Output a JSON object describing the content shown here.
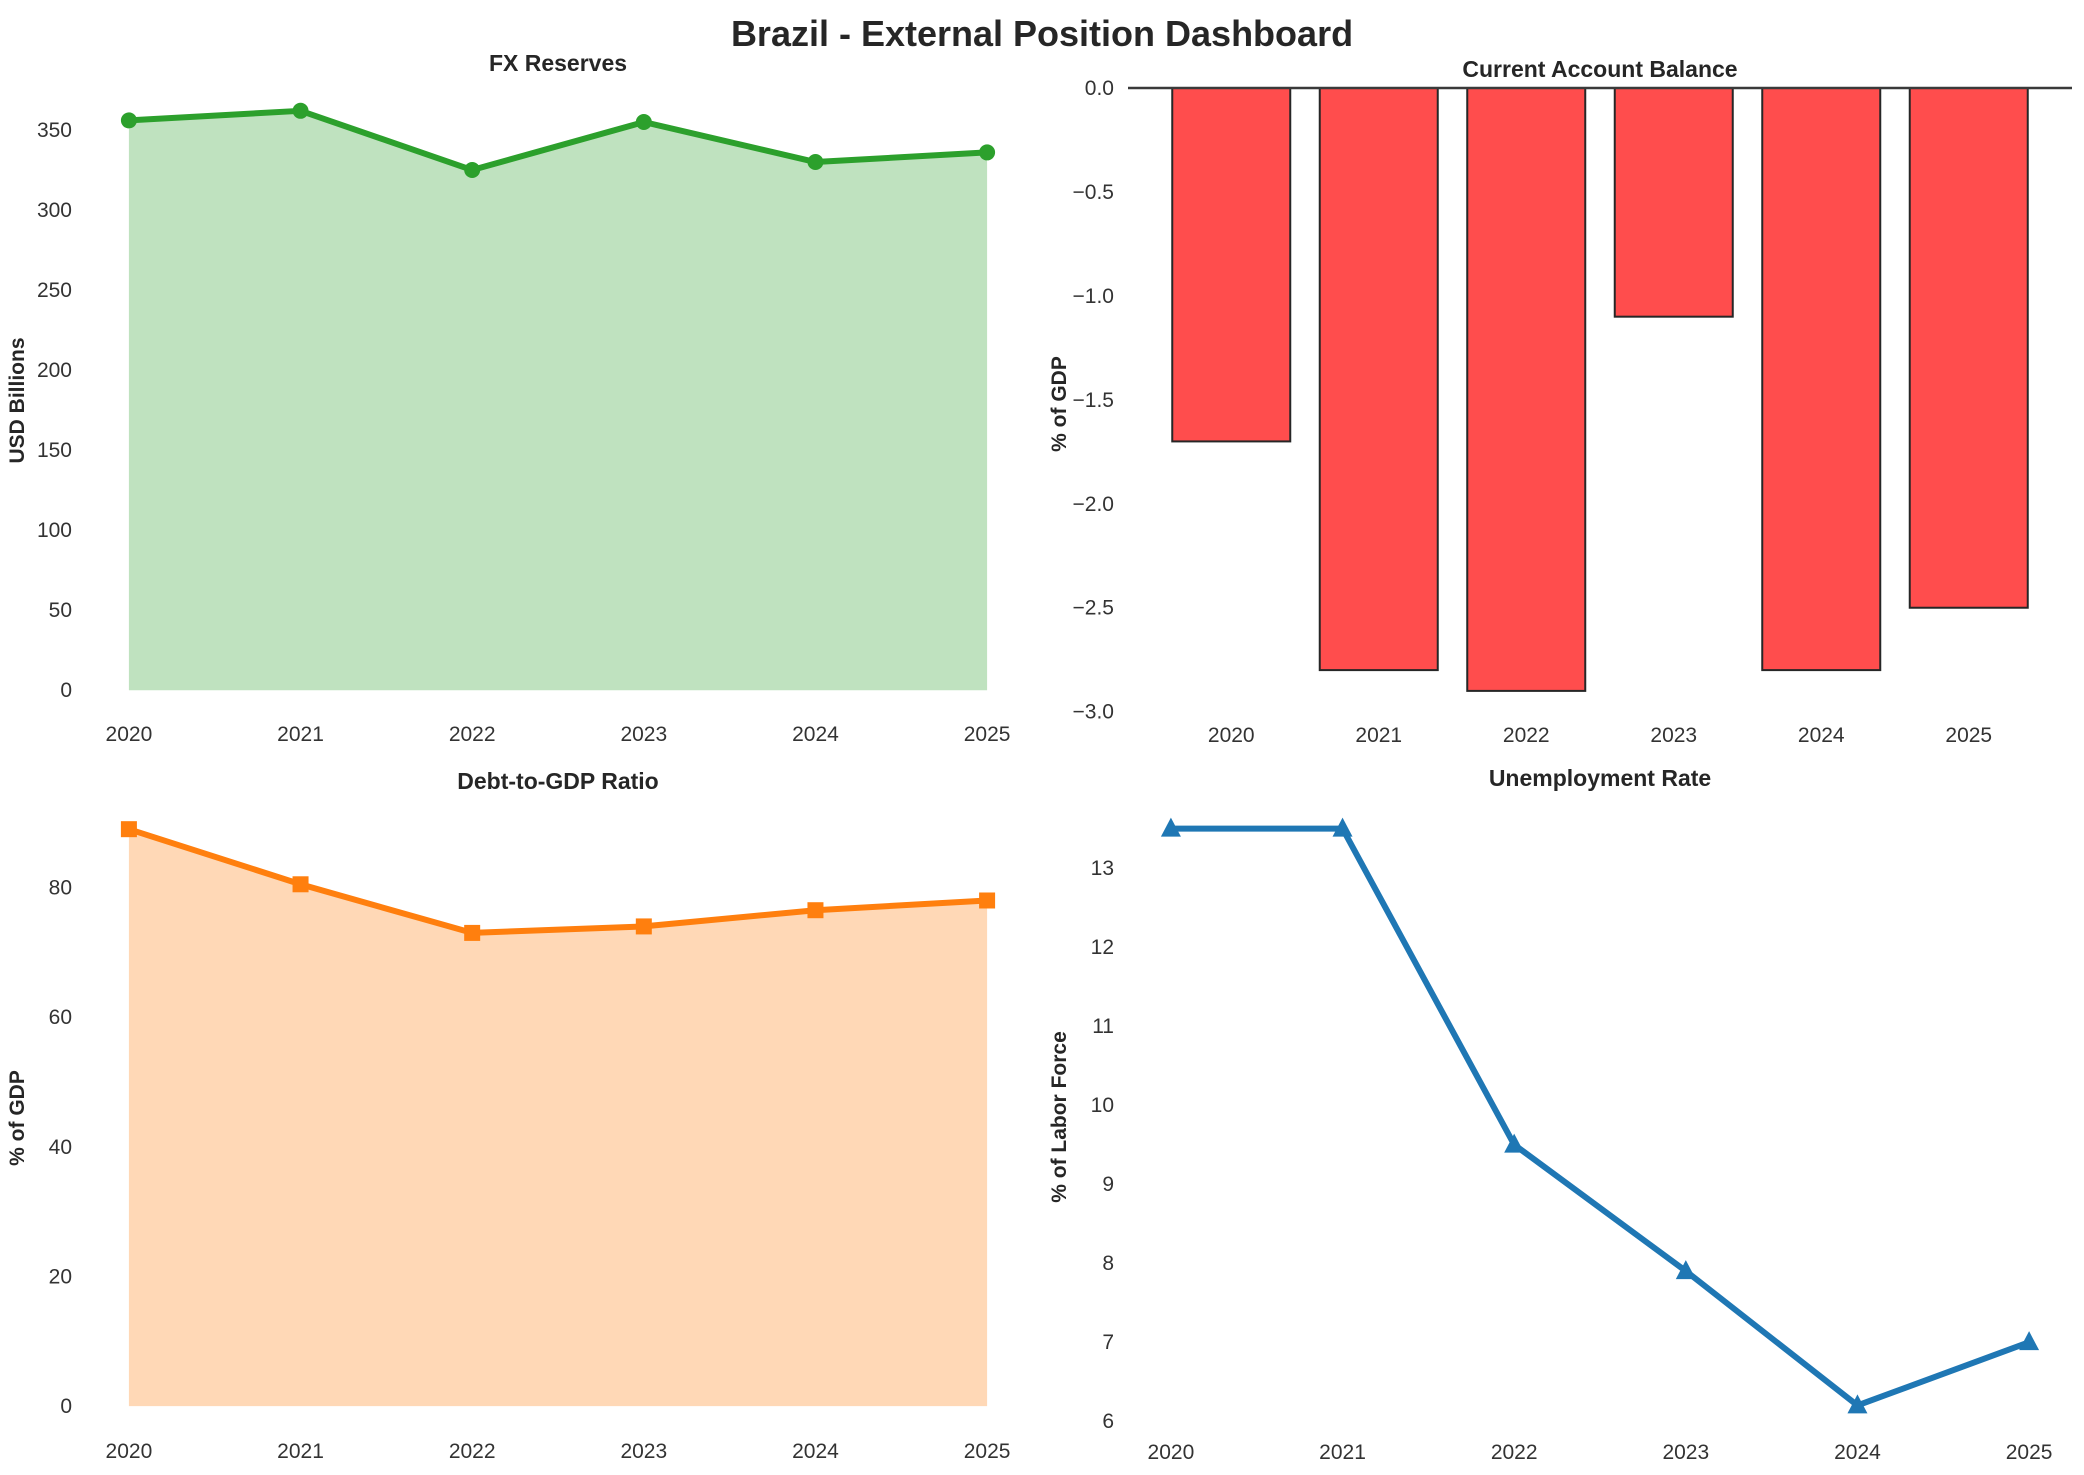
{
  "title": "Brazil - External Position Dashboard",
  "chart_data": [
    {
      "id": "fx-reserves",
      "type": "area",
      "title": "FX Reserves",
      "xlabel": "",
      "ylabel": "USD Billions",
      "categories": [
        "2020",
        "2021",
        "2022",
        "2023",
        "2024",
        "2025"
      ],
      "values": [
        356,
        362,
        325,
        355,
        330,
        336
      ],
      "ylim": [
        -18,
        380
      ],
      "yticks": [
        0,
        50,
        100,
        150,
        200,
        250,
        300,
        350
      ],
      "ytick_labels": [
        "0",
        "50",
        "100",
        "150",
        "200",
        "250",
        "300",
        "350"
      ],
      "marker": "circle",
      "line_color": "#2ca02c",
      "fill_color": "rgba(44,160,44,0.30)",
      "fill_baseline": 0,
      "grid": false,
      "legend": "none"
    },
    {
      "id": "current-account",
      "type": "bar",
      "title": "Current Account Balance",
      "xlabel": "",
      "ylabel": "% of GDP",
      "categories": [
        "2020",
        "2021",
        "2022",
        "2023",
        "2024",
        "2025"
      ],
      "values": [
        -1.7,
        -2.8,
        -2.9,
        -1.1,
        -2.8,
        -2.5
      ],
      "ylim": [
        -3.04,
        0
      ],
      "yticks": [
        0,
        -0.5,
        -1.0,
        -1.5,
        -2.0,
        -2.5,
        -3.0
      ],
      "ytick_labels": [
        "0.0",
        "−0.5",
        "−1.0",
        "−1.5",
        "−2.0",
        "−2.5",
        "−3.0"
      ],
      "bar_color": "#ff4d4d",
      "bar_edge_color": "#262626",
      "zero_line": true,
      "grid": false,
      "legend": "none"
    },
    {
      "id": "debt-to-gdp",
      "type": "area",
      "title": "Debt-to-GDP Ratio",
      "xlabel": "",
      "ylabel": "% of GDP",
      "categories": [
        "2020",
        "2021",
        "2022",
        "2023",
        "2024",
        "2025"
      ],
      "values": [
        89,
        80.5,
        73,
        74,
        76.5,
        78
      ],
      "ylim": [
        -4.6,
        93.5
      ],
      "yticks": [
        0,
        20,
        40,
        60,
        80
      ],
      "ytick_labels": [
        "0",
        "20",
        "40",
        "60",
        "80"
      ],
      "marker": "square",
      "line_color": "#ff7f0e",
      "fill_color": "rgba(255,127,14,0.30)",
      "fill_baseline": 0,
      "grid": false,
      "legend": "none"
    },
    {
      "id": "unemployment",
      "type": "line",
      "title": "Unemployment Rate",
      "xlabel": "",
      "ylabel": "% of Labor Force",
      "categories": [
        "2020",
        "2021",
        "2022",
        "2023",
        "2024",
        "2025"
      ],
      "values": [
        13.5,
        13.5,
        9.5,
        7.9,
        6.2,
        7.0
      ],
      "ylim": [
        5.8,
        13.9
      ],
      "yticks": [
        6,
        7,
        8,
        9,
        10,
        11,
        12,
        13
      ],
      "ytick_labels": [
        "6",
        "7",
        "8",
        "9",
        "10",
        "11",
        "12",
        "13"
      ],
      "marker": "triangle",
      "line_color": "#1f77b4",
      "fill_color": null,
      "grid": false,
      "legend": "none"
    }
  ]
}
